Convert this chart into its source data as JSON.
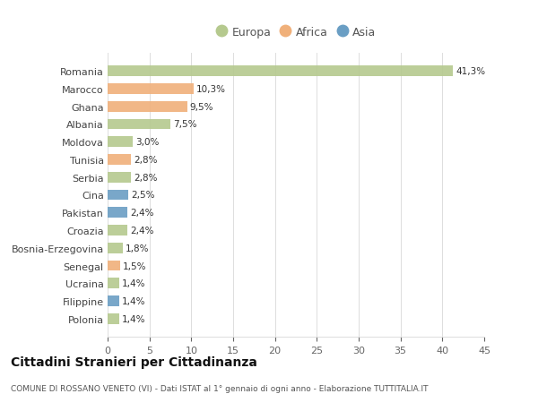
{
  "countries": [
    "Romania",
    "Marocco",
    "Ghana",
    "Albania",
    "Moldova",
    "Tunisia",
    "Serbia",
    "Cina",
    "Pakistan",
    "Croazia",
    "Bosnia-Erzegovina",
    "Senegal",
    "Ucraina",
    "Filippine",
    "Polonia"
  ],
  "values": [
    41.3,
    10.3,
    9.5,
    7.5,
    3.0,
    2.8,
    2.8,
    2.5,
    2.4,
    2.4,
    1.8,
    1.5,
    1.4,
    1.4,
    1.4
  ],
  "labels": [
    "41,3%",
    "10,3%",
    "9,5%",
    "7,5%",
    "3,0%",
    "2,8%",
    "2,8%",
    "2,5%",
    "2,4%",
    "2,4%",
    "1,8%",
    "1,5%",
    "1,4%",
    "1,4%",
    "1,4%"
  ],
  "continents": [
    "Europa",
    "Africa",
    "Africa",
    "Europa",
    "Europa",
    "Africa",
    "Europa",
    "Asia",
    "Asia",
    "Europa",
    "Europa",
    "Africa",
    "Europa",
    "Asia",
    "Europa"
  ],
  "colors": {
    "Europa": "#b5c98e",
    "Africa": "#f0b07a",
    "Asia": "#6a9ec4"
  },
  "background_color": "#ffffff",
  "title": "Cittadini Stranieri per Cittadinanza",
  "subtitle": "COMUNE DI ROSSANO VENETO (VI) - Dati ISTAT al 1° gennaio di ogni anno - Elaborazione TUTTITALIA.IT",
  "xlim": [
    0,
    45
  ],
  "xticks": [
    0,
    5,
    10,
    15,
    20,
    25,
    30,
    35,
    40,
    45
  ]
}
